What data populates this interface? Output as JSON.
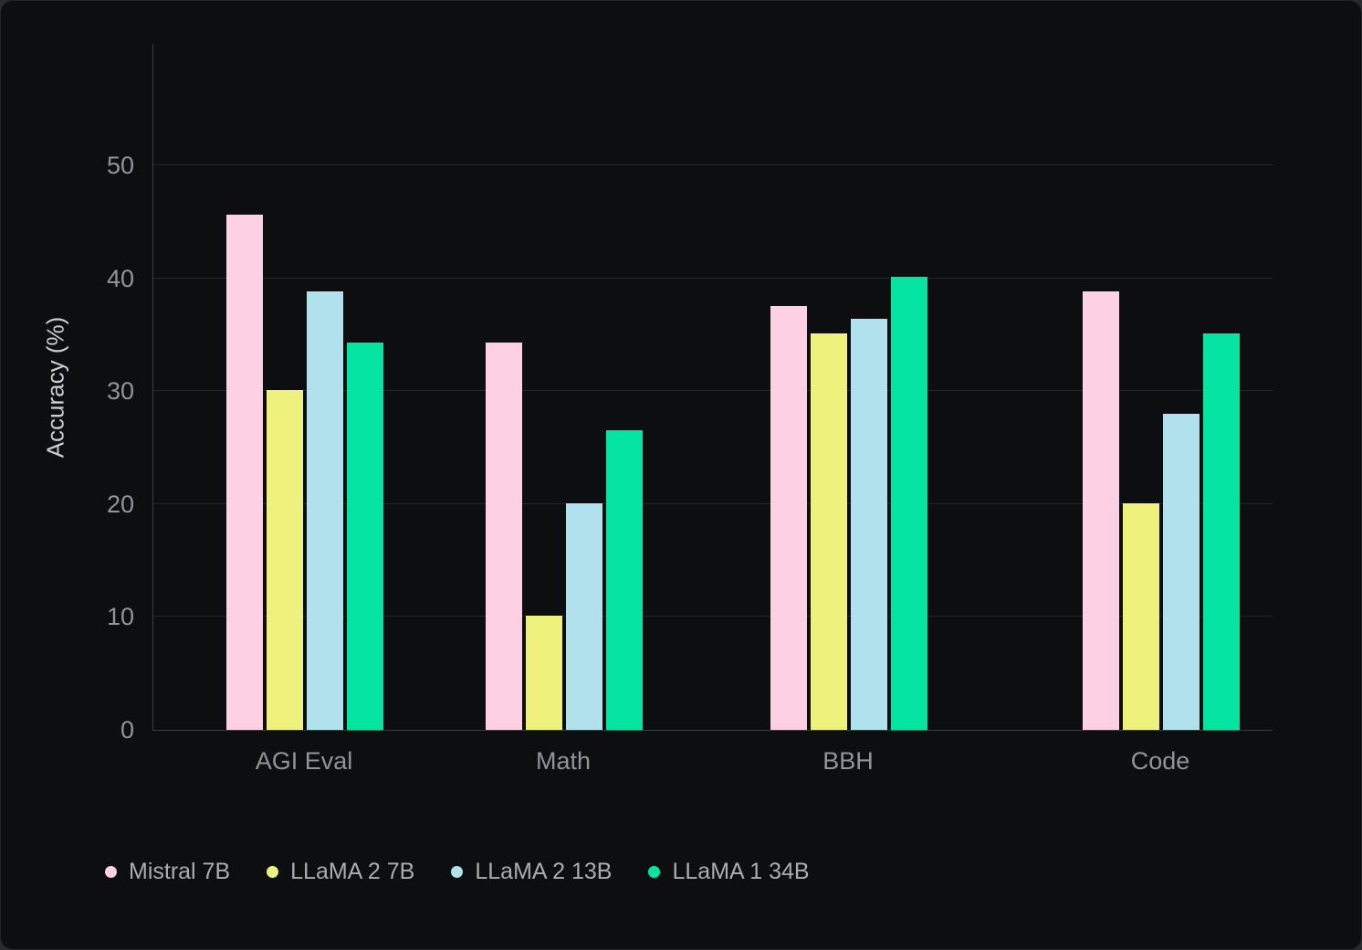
{
  "chart_data": {
    "type": "bar",
    "title": "",
    "xlabel": "",
    "ylabel": "Accuracy (%)",
    "categories": [
      "AGI Eval",
      "Math",
      "BBH",
      "Code"
    ],
    "series": [
      {
        "name": "Mistral 7B",
        "color": "#fdd0e4",
        "values": [
          45.6,
          34.3,
          37.5,
          38.8
        ]
      },
      {
        "name": "LLaMA 2 7B",
        "color": "#eff17d",
        "values": [
          30.1,
          10.1,
          35.1,
          20.1
        ]
      },
      {
        "name": "LLaMA 2 13B",
        "color": "#b0e1ec",
        "values": [
          38.8,
          20.1,
          36.4,
          28.0
        ]
      },
      {
        "name": "LLaMA 1 34B",
        "color": "#05e5a1",
        "values": [
          34.3,
          26.5,
          40.1,
          35.1
        ]
      }
    ],
    "y_ticks": [
      0,
      10,
      20,
      30,
      40,
      50
    ],
    "ylim": [
      0,
      60.7
    ],
    "grid": "horizontal",
    "legend_position": "bottom-left"
  },
  "colors": {
    "background": "#0d0e0f",
    "bar_pink": "#fdd0e4",
    "bar_yellow": "#eff17d",
    "bar_blue": "#b0e1ec",
    "bar_green": "#05e5a1"
  }
}
